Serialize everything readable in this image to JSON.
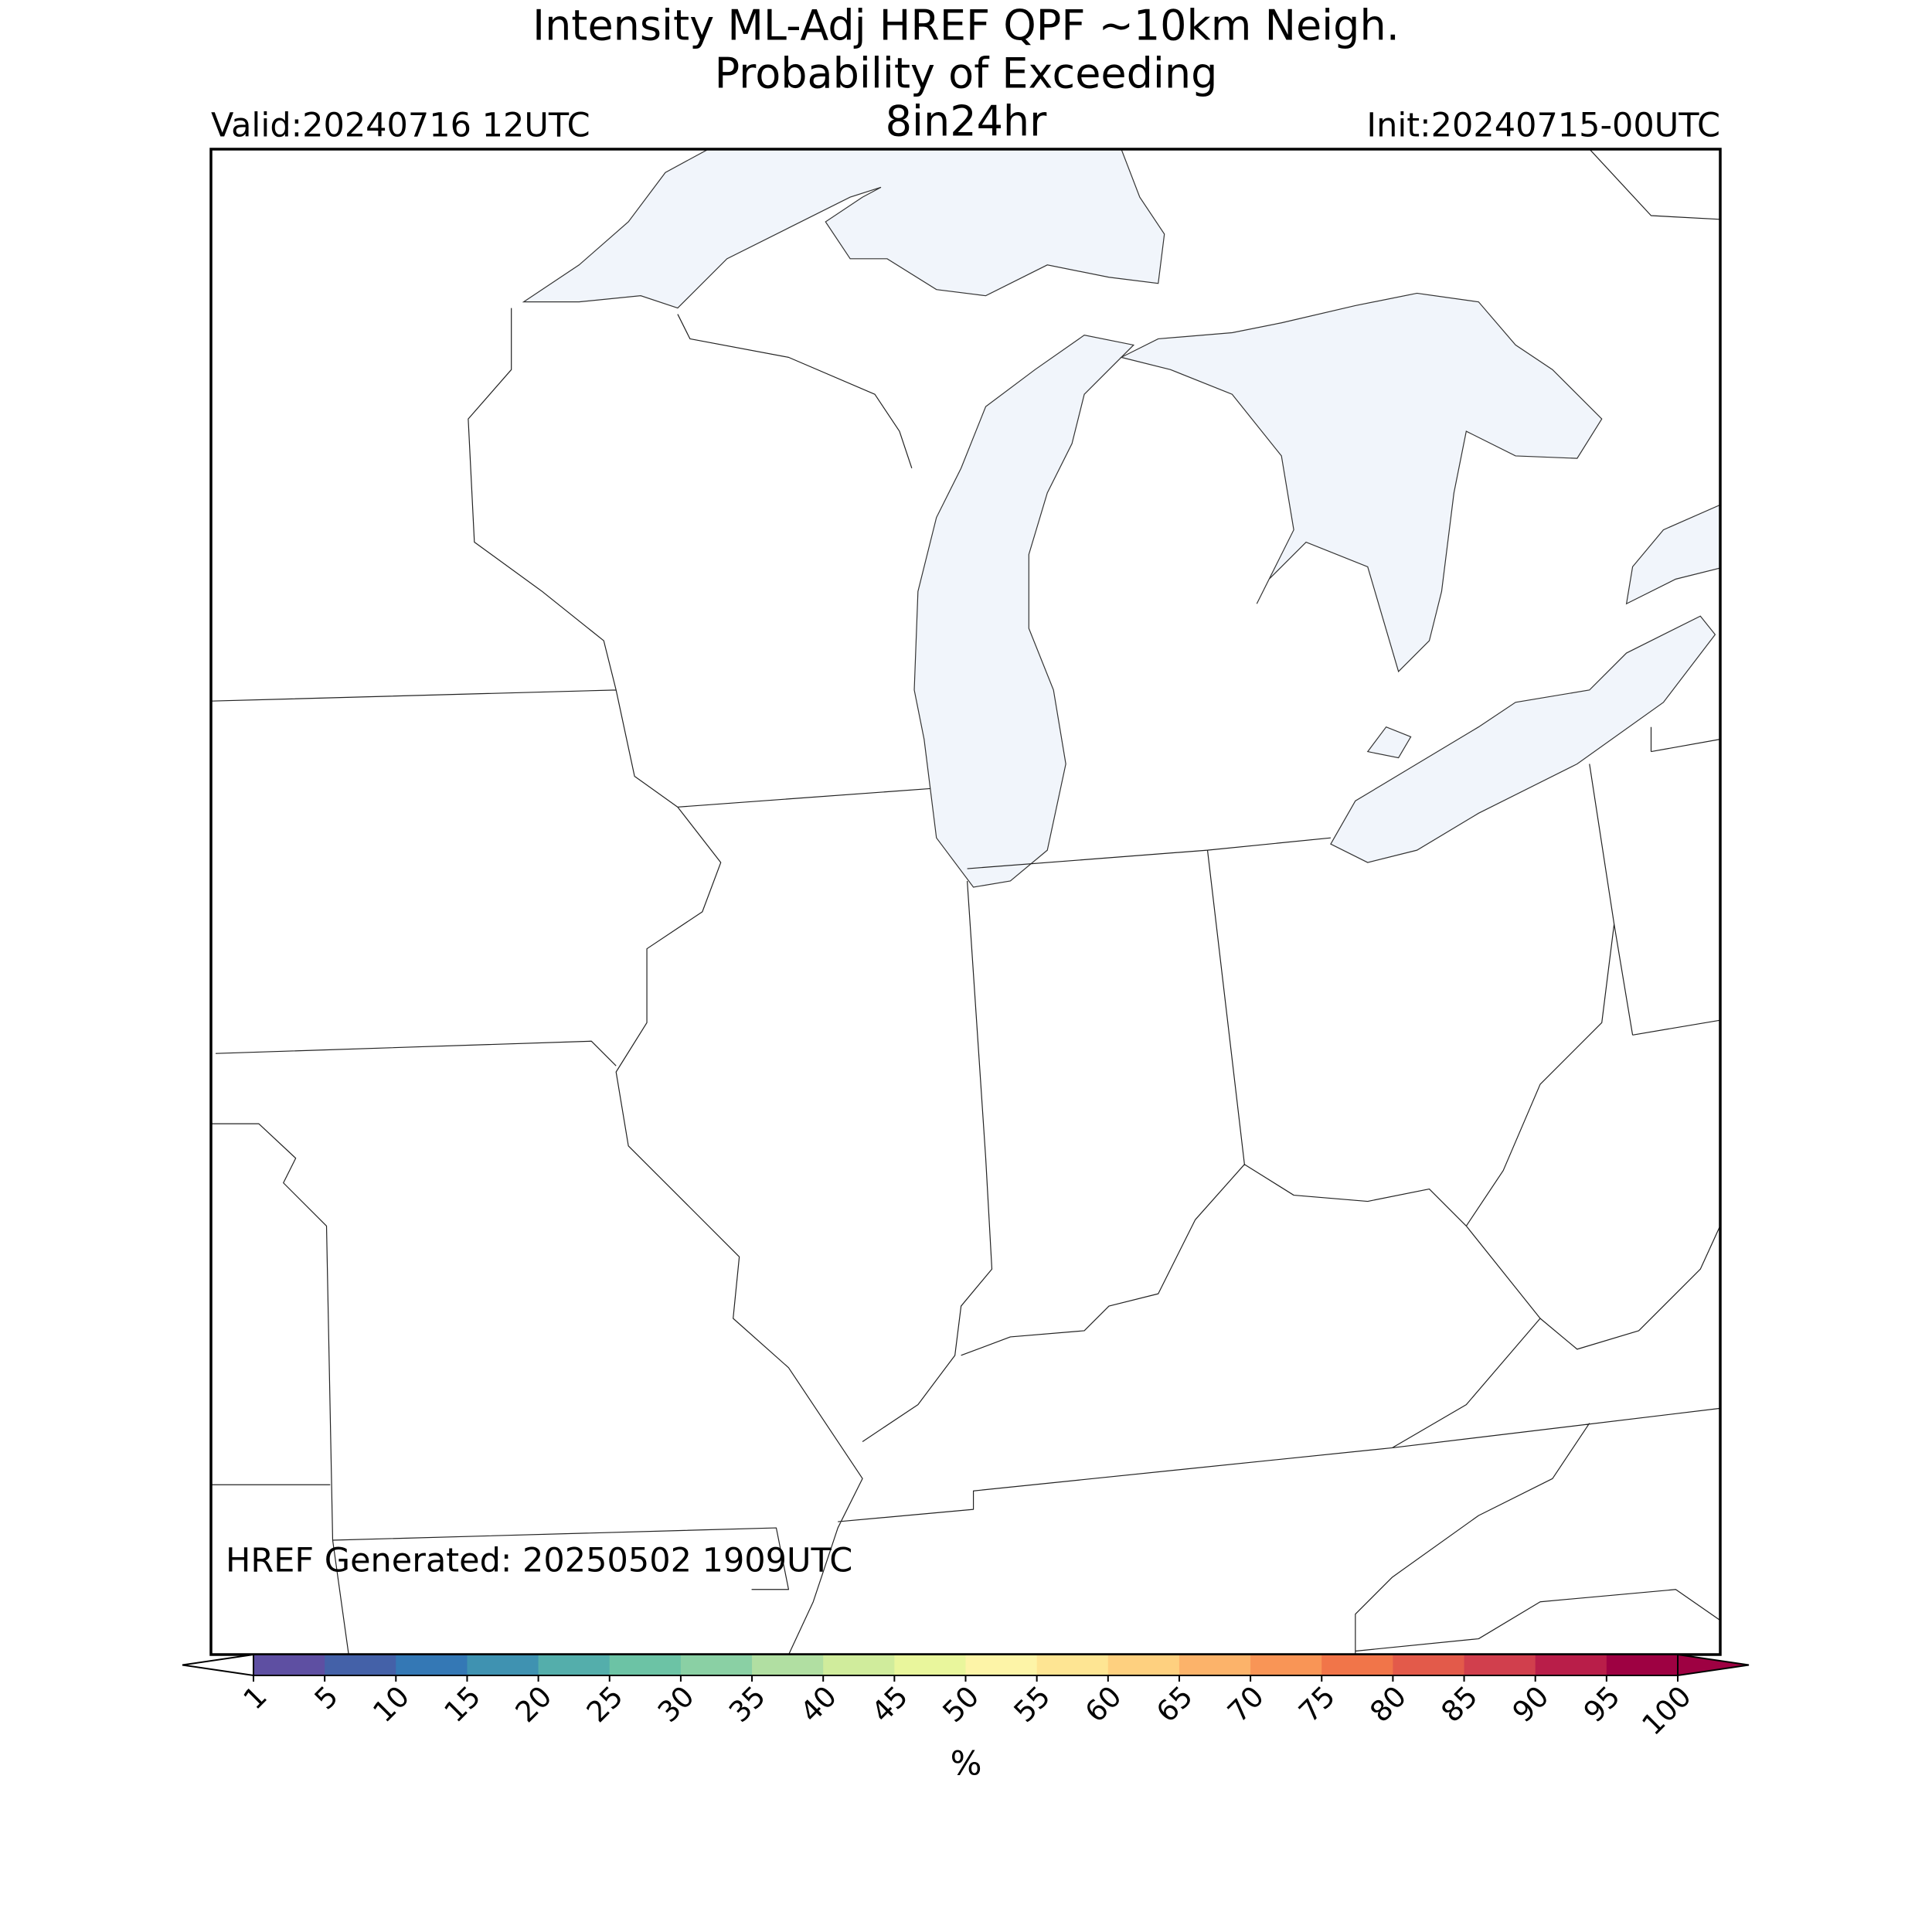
{
  "header": {
    "title_lines": [
      "Intensity ML-Adj HREF QPF ~10km Neigh.",
      "Probability of Exceeding",
      "8in24hr"
    ],
    "valid": "Valid:20240716 12UTC",
    "init": "Init:20240715-00UTC"
  },
  "map": {
    "generated": "HREF Generated: 20250502 1909UTC"
  },
  "colorbar": {
    "label": "%",
    "ticks": [
      1,
      5,
      10,
      15,
      20,
      25,
      30,
      35,
      40,
      45,
      50,
      55,
      60,
      65,
      70,
      75,
      80,
      85,
      90,
      95,
      100
    ],
    "colors": [
      "#5e4fa2",
      "#4461a8",
      "#3478b5",
      "#3f92b1",
      "#54aeab",
      "#6cc3a5",
      "#8ad0a4",
      "#b1dfa2",
      "#d0ec9c",
      "#e9f69c",
      "#fdf4a7",
      "#fee593",
      "#fed07f",
      "#fcb36a",
      "#f99556",
      "#f17549",
      "#e35a4a",
      "#d13f4d",
      "#b91e49",
      "#9e0142"
    ],
    "under_color": "#ffffff",
    "over_color": "#9e0142"
  }
}
